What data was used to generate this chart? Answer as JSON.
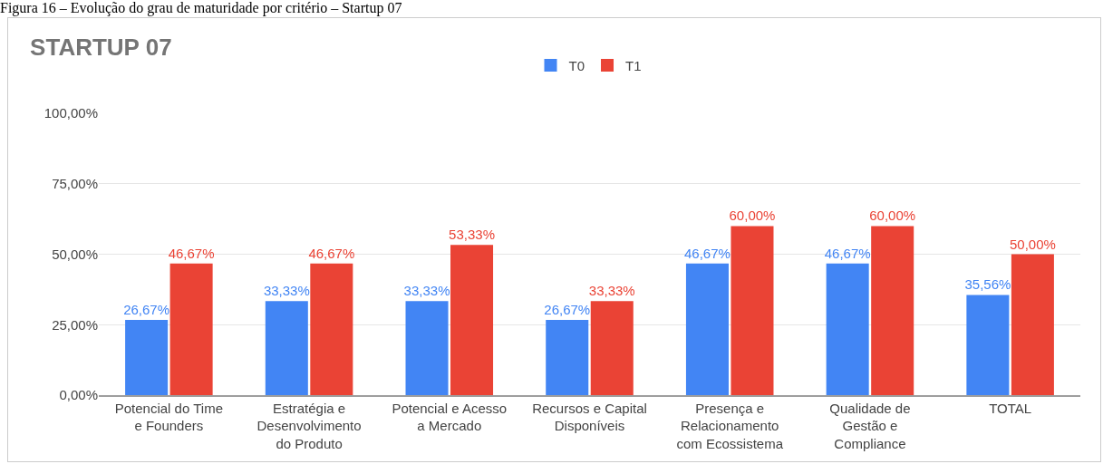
{
  "chart_data": {
    "type": "bar",
    "title": "STARTUP 07",
    "annotations": [
      "Figura 16 – Evolução do grau de maturidade por critério – Startup 07"
    ],
    "categories": [
      "Potencial do Time e Founders",
      "Estratégia e Desenvolvimento do Produto",
      "Potencial e Acesso a Mercado",
      "Recursos e Capital Disponíveis",
      "Presença e Relacionamento com Ecossistema",
      "Qualidade de Gestão e Compliance",
      "TOTAL"
    ],
    "series": [
      {
        "name": "T0",
        "color": "#4285f4",
        "values": [
          26.67,
          33.33,
          33.33,
          26.67,
          46.67,
          46.67,
          35.56
        ],
        "value_labels": [
          "26,67%",
          "33,33%",
          "33,33%",
          "26,67%",
          "46,67%",
          "46,67%",
          "35,56%"
        ]
      },
      {
        "name": "T1",
        "color": "#ea4335",
        "values": [
          46.67,
          46.67,
          53.33,
          33.33,
          60,
          60,
          50
        ],
        "value_labels": [
          "46,67%",
          "46,67%",
          "53,33%",
          "33,33%",
          "60,00%",
          "60,00%",
          "50,00%"
        ]
      }
    ],
    "ylim": [
      0,
      100
    ],
    "yticks": [
      {
        "value": 0,
        "label": "0,00%"
      },
      {
        "value": 25,
        "label": "25,00%"
      },
      {
        "value": 50,
        "label": "50,00%"
      },
      {
        "value": 75,
        "label": "75,00%"
      },
      {
        "value": 100,
        "label": "100,00%"
      }
    ],
    "grid": "y",
    "legend": "top"
  }
}
